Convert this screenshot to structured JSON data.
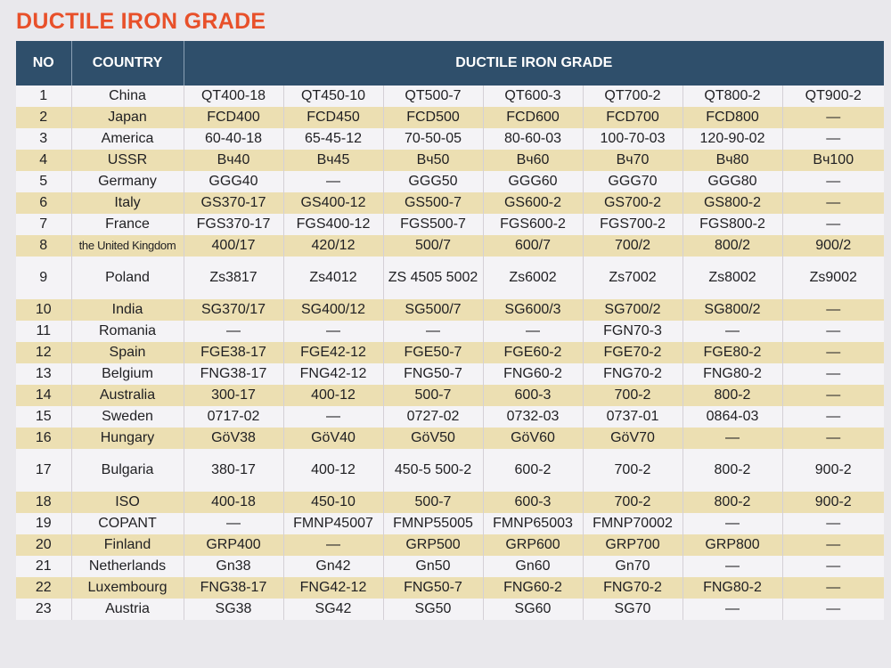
{
  "title": "DUCTILE IRON GRADE",
  "table": {
    "headers": {
      "no": "NO",
      "country": "COUNTRY",
      "grade": "DUCTILE IRON GRADE"
    },
    "rows": [
      {
        "no": "1",
        "country": "China",
        "grades": [
          "QT400-18",
          "QT450-10",
          "QT500-7",
          "QT600-3",
          "QT700-2",
          "QT800-2",
          "QT900-2"
        ]
      },
      {
        "no": "2",
        "country": "Japan",
        "grades": [
          "FCD400",
          "FCD450",
          "FCD500",
          "FCD600",
          "FCD700",
          "FCD800",
          "—"
        ]
      },
      {
        "no": "3",
        "country": "America",
        "grades": [
          "60-40-18",
          "65-45-12",
          "70-50-05",
          "80-60-03",
          "100-70-03",
          "120-90-02",
          "—"
        ]
      },
      {
        "no": "4",
        "country": "USSR",
        "grades": [
          "Bч40",
          "Bч45",
          "Bч50",
          "Bч60",
          "Bч70",
          "Bч80",
          "Bч100"
        ]
      },
      {
        "no": "5",
        "country": "Germany",
        "grades": [
          "GGG40",
          "—",
          "GGG50",
          "GGG60",
          "GGG70",
          "GGG80",
          "—"
        ]
      },
      {
        "no": "6",
        "country": "Italy",
        "grades": [
          "GS370-17",
          "GS400-12",
          "GS500-7",
          "GS600-2",
          "GS700-2",
          "GS800-2",
          "—"
        ]
      },
      {
        "no": "7",
        "country": "France",
        "grades": [
          "FGS370-17",
          "FGS400-12",
          "FGS500-7",
          "FGS600-2",
          "FGS700-2",
          "FGS800-2",
          "—"
        ]
      },
      {
        "no": "8",
        "country": "the United Kingdom",
        "grades": [
          "400/17",
          "420/12",
          "500/7",
          "600/7",
          "700/2",
          "800/2",
          "900/2"
        ]
      },
      {
        "no": "9",
        "country": "Poland",
        "grades": [
          "Zs3817",
          "Zs4012",
          "ZS 4505\n5002",
          "Zs6002",
          "Zs7002",
          "Zs8002",
          "Zs9002"
        ]
      },
      {
        "no": "10",
        "country": "India",
        "grades": [
          "SG370/17",
          "SG400/12",
          "SG500/7",
          "SG600/3",
          "SG700/2",
          "SG800/2",
          "—"
        ]
      },
      {
        "no": "11",
        "country": "Romania",
        "grades": [
          "—",
          "—",
          "—",
          "—",
          "FGN70-3",
          "—",
          "—"
        ]
      },
      {
        "no": "12",
        "country": "Spain",
        "grades": [
          "FGE38-17",
          "FGE42-12",
          "FGE50-7",
          "FGE60-2",
          "FGE70-2",
          "FGE80-2",
          "—"
        ]
      },
      {
        "no": "13",
        "country": "Belgium",
        "grades": [
          "FNG38-17",
          "FNG42-12",
          "FNG50-7",
          "FNG60-2",
          "FNG70-2",
          "FNG80-2",
          "—"
        ]
      },
      {
        "no": "14",
        "country": "Australia",
        "grades": [
          "300-17",
          "400-12",
          "500-7",
          "600-3",
          "700-2",
          "800-2",
          "—"
        ]
      },
      {
        "no": "15",
        "country": "Sweden",
        "grades": [
          "0717-02",
          "—",
          "0727-02",
          "0732-03",
          "0737-01",
          "0864-03",
          "—"
        ]
      },
      {
        "no": "16",
        "country": "Hungary",
        "grades": [
          "GöV38",
          "GöV40",
          "GöV50",
          "GöV60",
          "GöV70",
          "—",
          "—"
        ]
      },
      {
        "no": "17",
        "country": "Bulgaria",
        "grades": [
          "380-17",
          "400-12",
          "450-5\n500-2",
          "600-2",
          "700-2",
          "800-2",
          "900-2"
        ]
      },
      {
        "no": "18",
        "country": "ISO",
        "grades": [
          "400-18",
          "450-10",
          "500-7",
          "600-3",
          "700-2",
          "800-2",
          "900-2"
        ]
      },
      {
        "no": "19",
        "country": "COPANT",
        "grades": [
          "—",
          "FMNP45007",
          "FMNP55005",
          "FMNP65003",
          "FMNP70002",
          "—",
          "—"
        ]
      },
      {
        "no": "20",
        "country": "Finland",
        "grades": [
          "GRP400",
          "—",
          "GRP500",
          "GRP600",
          "GRP700",
          "GRP800",
          "—"
        ]
      },
      {
        "no": "21",
        "country": "Netherlands",
        "grades": [
          "Gn38",
          "Gn42",
          "Gn50",
          "Gn60",
          "Gn70",
          "—",
          "—"
        ]
      },
      {
        "no": "22",
        "country": "Luxembourg",
        "grades": [
          "FNG38-17",
          "FNG42-12",
          "FNG50-7",
          "FNG60-2",
          "FNG70-2",
          "FNG80-2",
          "—"
        ]
      },
      {
        "no": "23",
        "country": "Austria",
        "grades": [
          "SG38",
          "SG42",
          "SG50",
          "SG60",
          "SG70",
          "—",
          "—"
        ]
      }
    ]
  }
}
